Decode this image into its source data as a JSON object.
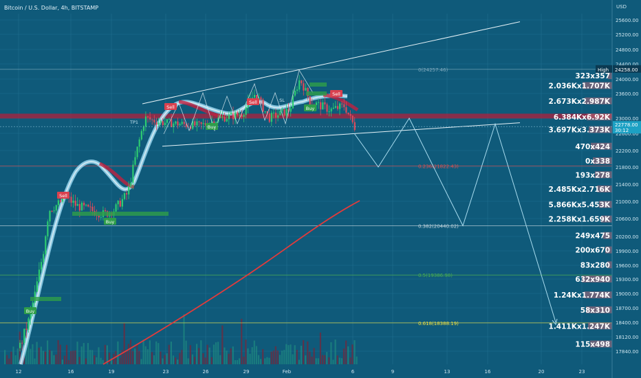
{
  "header": {
    "title": "Bitcoin / U.S. Dollar, 4h, BITSTAMP",
    "currency": "USD"
  },
  "colors": {
    "bg": "#0f5a7a",
    "grid": "#1f6e8f",
    "candle_up": "#2ecc71",
    "candle_down": "#e04a5a",
    "ema": "#e23b3b",
    "rainbow_up": "#a8e6ff",
    "rainbow_down": "#c02040",
    "fib_label": "#9fd3e8",
    "volume": "#8b1a2a"
  },
  "chart_data": {
    "type": "candlestick",
    "ylim": [
      17700,
      25800
    ],
    "y_ticks": [
      "25600.00",
      "25200.00",
      "24800.00",
      "24400.00",
      "24000.00",
      "23600.00",
      "23000.00",
      "22600.00",
      "22200.00",
      "21800.00",
      "21400.00",
      "21000.00",
      "20600.00",
      "20200.00",
      "19900.00",
      "19600.00",
      "19300.00",
      "19000.00",
      "18700.00",
      "18400.00",
      "18120.00",
      "17840.00"
    ],
    "x_ticks": [
      "12",
      "16",
      "19",
      "23",
      "26",
      "29",
      "Feb",
      "6",
      "9",
      "13",
      "16",
      "20",
      "23"
    ],
    "fib_levels": [
      {
        "label": "0(24257.46)",
        "value": 24257.46,
        "color": "#7fa9bd"
      },
      {
        "label": "0.236(21822.43)",
        "value": 21822.43,
        "color": "#e05050"
      },
      {
        "label": "0.382(20440.02)",
        "value": 20440.02,
        "color": "#c8d8e0"
      },
      {
        "label": "0.5(19386.98)",
        "value": 19386.98,
        "color": "#4caf50"
      },
      {
        "label": "0.618(18388.19)",
        "value": 18388.19,
        "color": "#f0e040"
      }
    ],
    "current_price": "22778.00",
    "timer": "30:12",
    "high_label": "High",
    "high_value": "24258.00",
    "signals": [
      "Sell",
      "Sell",
      "Sell",
      "Sell",
      "Buy",
      "Buy",
      "Buy",
      "Buy",
      "TP1",
      "SL"
    ],
    "order_book": [
      {
        "text": "323x357",
        "value": 24090
      },
      {
        "text": "2.036Kx1.707K",
        "value": 23820
      },
      {
        "text": "2.673Kx2.987K",
        "value": 23420
      },
      {
        "text": "6.384Kx6.92K",
        "value": 23030
      },
      {
        "text": "3.697Kx3.373K",
        "value": 22700
      },
      {
        "text": "470x424",
        "value": 22300
      },
      {
        "text": "0x338",
        "value": 21950
      },
      {
        "text": "193x278",
        "value": 21620
      },
      {
        "text": "2.485Kx2.716K",
        "value": 21290
      },
      {
        "text": "5.866Kx5.453K",
        "value": 20930
      },
      {
        "text": "2.258Kx1.659K",
        "value": 20590
      },
      {
        "text": "249x475",
        "value": 20220
      },
      {
        "text": "200x670",
        "value": 19920
      },
      {
        "text": "83x280",
        "value": 19610
      },
      {
        "text": "632x940",
        "value": 19300
      },
      {
        "text": "1.24Kx1.774K",
        "value": 18970
      },
      {
        "text": "58x310",
        "value": 18660
      },
      {
        "text": "1.411Kx1.247K",
        "value": 18330
      },
      {
        "text": "115x498",
        "value": 17980
      }
    ]
  }
}
